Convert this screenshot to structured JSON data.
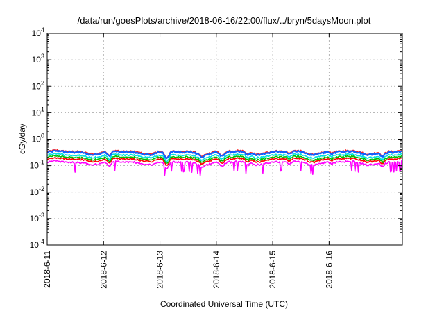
{
  "chart_data": {
    "type": "line",
    "title": "/data/run/goesPlots/archive/2018-06-16/22:00/flux/../bryn/5daysMoon.plot",
    "xlabel": "Coordinated Universal Time (UTC)",
    "ylabel": "cGy/day",
    "x_ticks": [
      "2018-6-11",
      "2018-6-12",
      "2018-6-13",
      "2018-6-14",
      "2018-6-15",
      "2018-6-16"
    ],
    "xlim_days": [
      0,
      6.3
    ],
    "y_scale": "log",
    "ylim": [
      0.0001,
      10000
    ],
    "y_ticks": [
      {
        "base": "10",
        "exp": "-4"
      },
      {
        "base": "10",
        "exp": "-3"
      },
      {
        "base": "10",
        "exp": "-2"
      },
      {
        "base": "10",
        "exp": "-1"
      },
      {
        "base": "10",
        "exp": "0"
      },
      {
        "base": "10",
        "exp": "1"
      },
      {
        "base": "10",
        "exp": "2"
      },
      {
        "base": "10",
        "exp": "3"
      },
      {
        "base": "10",
        "exp": "4"
      }
    ],
    "grid": true,
    "series": [
      {
        "color": "#ff00ff",
        "baseline": 0.13
      },
      {
        "color": "#ff0000",
        "baseline": 0.17
      },
      {
        "color": "#00c000",
        "baseline": 0.2
      },
      {
        "color": "#00e0e0",
        "baseline": 0.24
      },
      {
        "color": "#ff2020",
        "baseline": 0.33
      },
      {
        "color": "#1060ff",
        "baseline": 0.31
      }
    ]
  }
}
